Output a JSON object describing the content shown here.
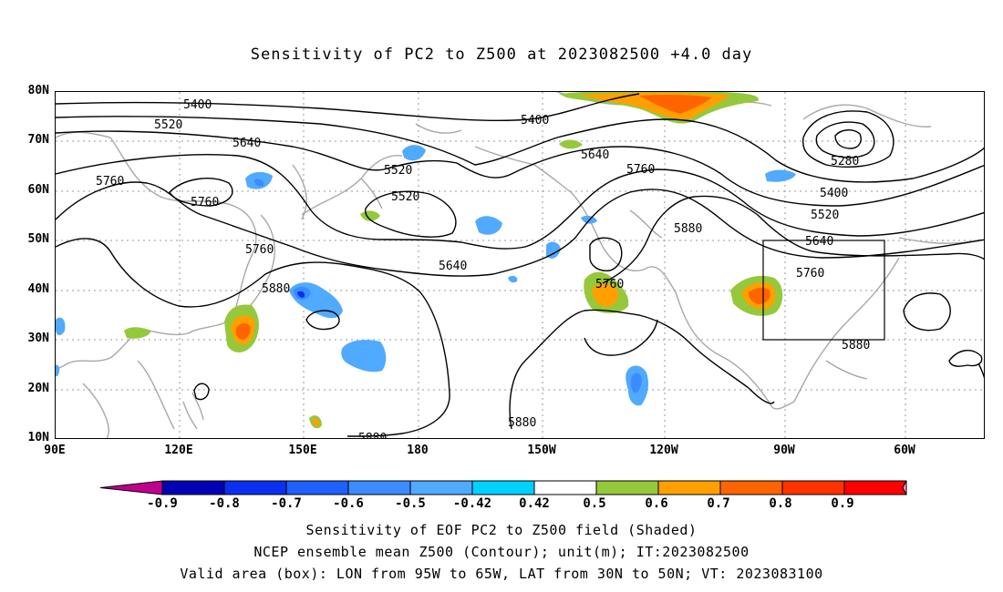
{
  "title": "Sensitivity of PC2 to Z500 at 2023082500 +4.0 day",
  "axes": {
    "lat_labels": [
      "80N",
      "70N",
      "60N",
      "50N",
      "40N",
      "30N",
      "20N",
      "10N"
    ],
    "lon_labels": [
      "90E",
      "120E",
      "150E",
      "180",
      "150W",
      "120W",
      "90W",
      "60W"
    ]
  },
  "contour_labels": [
    "5400",
    "5520",
    "5640",
    "5760",
    "5760",
    "5400",
    "5520",
    "5640",
    "5760",
    "5520",
    "5760",
    "5880",
    "5640",
    "5760",
    "5880",
    "5280",
    "5400",
    "5520",
    "5640",
    "5760",
    "5880",
    "5880",
    "5880"
  ],
  "colorbar": {
    "labels": [
      "-0.9",
      "-0.8",
      "-0.7",
      "-0.6",
      "-0.5",
      "-0.42",
      "0.42",
      "0.5",
      "0.6",
      "0.7",
      "0.8",
      "0.9"
    ],
    "colors": [
      "#c0008c",
      "#0000b4",
      "#0c30f0",
      "#2060ff",
      "#3c8cff",
      "#50aaff",
      "#00d2ff",
      "#ffffff",
      "#96c83c",
      "#ffa000",
      "#ff6400",
      "#ff3200",
      "#ff0000",
      "#ff9cc8"
    ]
  },
  "caption": {
    "line1": "Sensitivity of EOF PC2 to Z500 field (Shaded)",
    "line2": "NCEP ensemble mean Z500 (Contour); unit(m); IT:2023082500",
    "line3": "Valid area (box): LON from 95W to 65W, LAT from 30N to 50N; VT: 2023083100"
  },
  "valid_box": {
    "lon_min": "95W",
    "lon_max": "65W",
    "lat_min": "30N",
    "lat_max": "50N"
  }
}
